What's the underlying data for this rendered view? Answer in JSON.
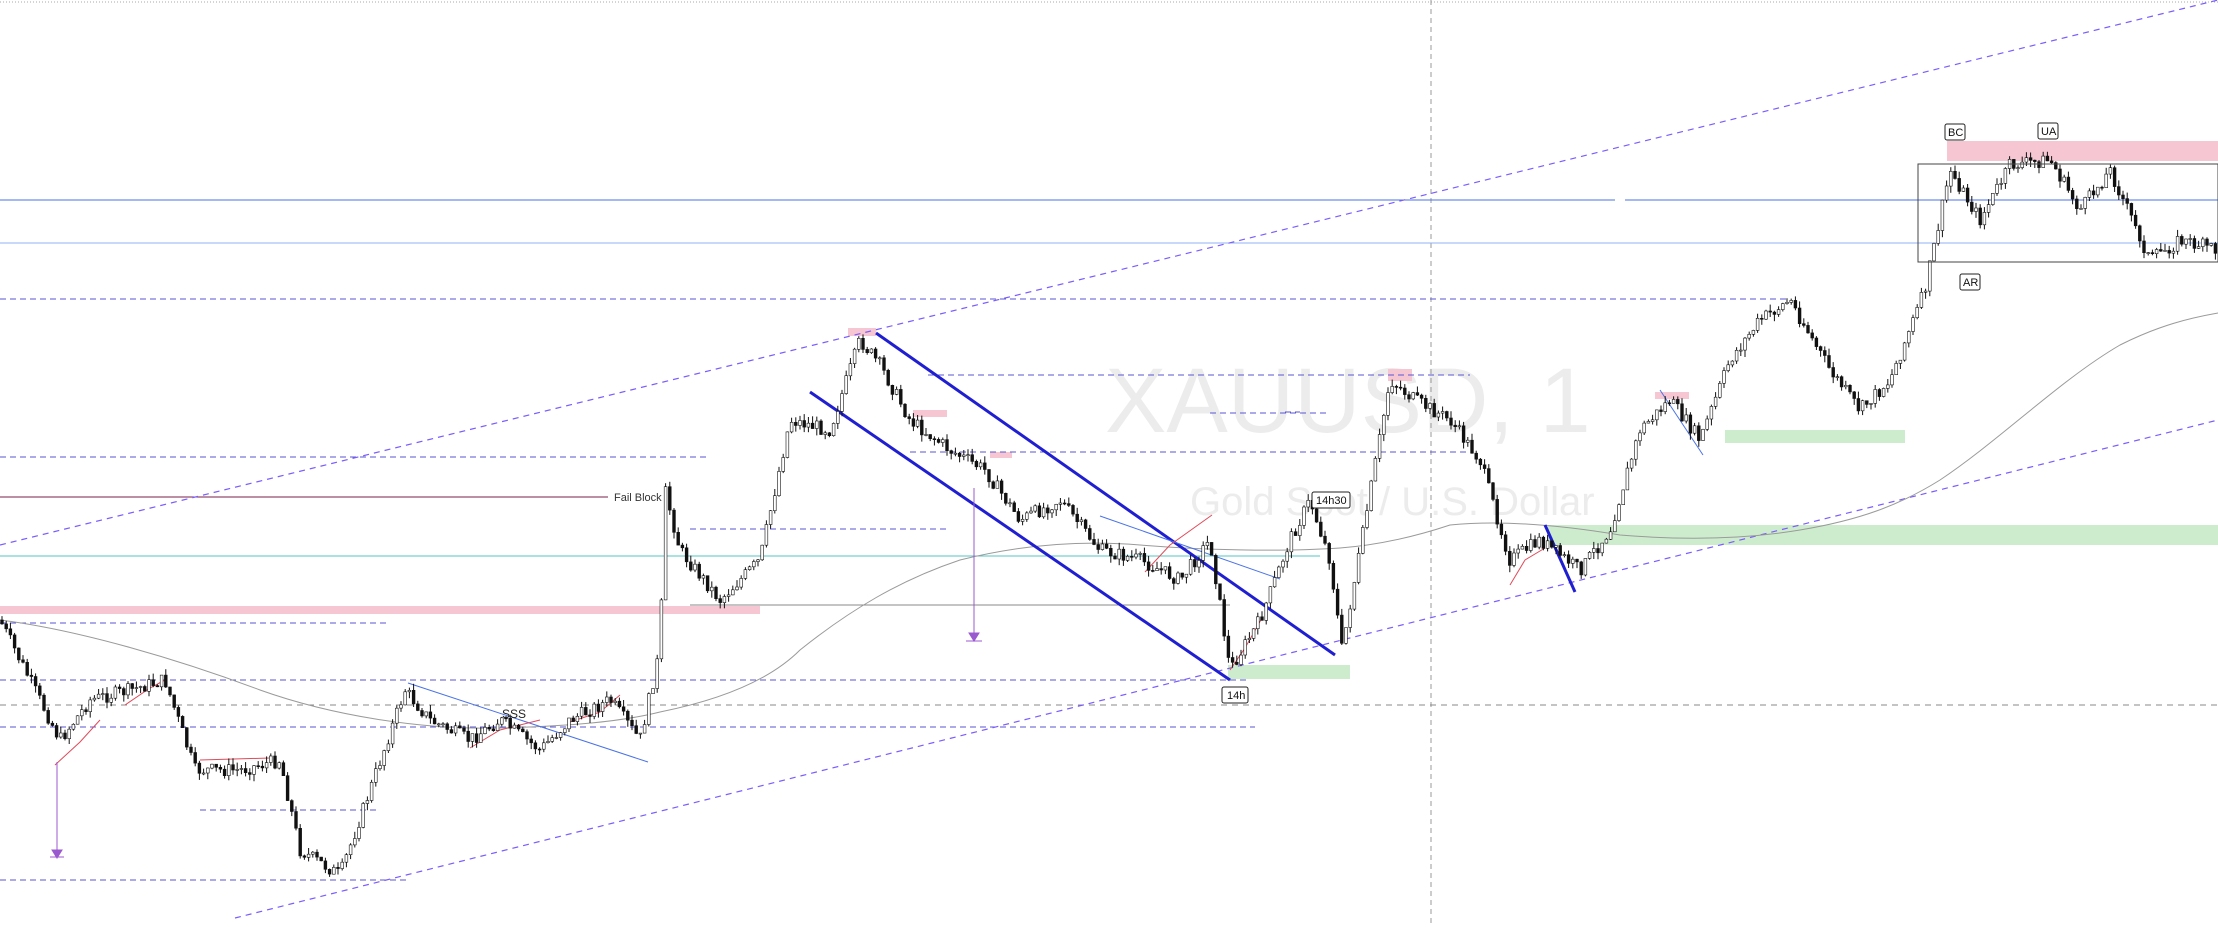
{
  "watermark": {
    "symbol": "XAUUSD, 1",
    "description": "Gold Spot / U.S. Dollar"
  },
  "colors": {
    "candle_up": "#ffffff",
    "candle_down": "#111111",
    "wick": "#111111",
    "supply": "#f6c6d3",
    "demand": "#cdeccd",
    "trend": "#7b5cff",
    "channel": "#1f1fd1",
    "level": "#5a86ff",
    "ma": "#9a9a9a",
    "text_line": "#7a2244",
    "cyan_line": "#55c6c6"
  },
  "labels": {
    "fail_block": "Fail Block",
    "sss": "SSS",
    "tag_14h": "14h",
    "tag_14h30": "14h30",
    "bc": "BC",
    "ua": "UA",
    "ar": "AR"
  },
  "chart_data": {
    "type": "candlestick",
    "title": "",
    "xlabel": "",
    "ylabel": "",
    "symbol": "XAUUSD",
    "timeframe": "1",
    "grid": false,
    "overlays": [
      "moving-average",
      "trend channel",
      "horizontal levels",
      "supply/demand zones"
    ],
    "close_path": [
      [
        0,
        620
      ],
      [
        30,
        680
      ],
      [
        60,
        740
      ],
      [
        90,
        700
      ],
      [
        130,
        690
      ],
      [
        165,
        680
      ],
      [
        195,
        770
      ],
      [
        240,
        770
      ],
      [
        280,
        760
      ],
      [
        300,
        850
      ],
      [
        340,
        875
      ],
      [
        370,
        790
      ],
      [
        405,
        690
      ],
      [
        430,
        720
      ],
      [
        470,
        740
      ],
      [
        500,
        720
      ],
      [
        540,
        750
      ],
      [
        570,
        720
      ],
      [
        610,
        700
      ],
      [
        640,
        740
      ],
      [
        660,
        650
      ],
      [
        665,
        490
      ],
      [
        680,
        550
      ],
      [
        720,
        600
      ],
      [
        760,
        560
      ],
      [
        790,
        420
      ],
      [
        830,
        430
      ],
      [
        860,
        340
      ],
      [
        880,
        365
      ],
      [
        910,
        420
      ],
      [
        950,
        450
      ],
      [
        985,
        470
      ],
      [
        1020,
        520
      ],
      [
        1060,
        500
      ],
      [
        1100,
        550
      ],
      [
        1140,
        560
      ],
      [
        1180,
        580
      ],
      [
        1210,
        540
      ],
      [
        1230,
        670
      ],
      [
        1260,
        620
      ],
      [
        1290,
        540
      ],
      [
        1310,
        500
      ],
      [
        1330,
        560
      ],
      [
        1342,
        650
      ],
      [
        1360,
        550
      ],
      [
        1390,
        380
      ],
      [
        1415,
        400
      ],
      [
        1450,
        420
      ],
      [
        1480,
        460
      ],
      [
        1510,
        560
      ],
      [
        1540,
        540
      ],
      [
        1580,
        570
      ],
      [
        1610,
        530
      ],
      [
        1640,
        430
      ],
      [
        1670,
        400
      ],
      [
        1700,
        440
      ],
      [
        1730,
        360
      ],
      [
        1760,
        320
      ],
      [
        1790,
        300
      ],
      [
        1830,
        370
      ],
      [
        1860,
        410
      ],
      [
        1890,
        380
      ],
      [
        1925,
        290
      ],
      [
        1950,
        170
      ],
      [
        1980,
        220
      ],
      [
        2010,
        165
      ],
      [
        2050,
        160
      ],
      [
        2080,
        210
      ],
      [
        2110,
        170
      ],
      [
        2150,
        260
      ],
      [
        2180,
        240
      ],
      [
        2218,
        250
      ]
    ]
  }
}
